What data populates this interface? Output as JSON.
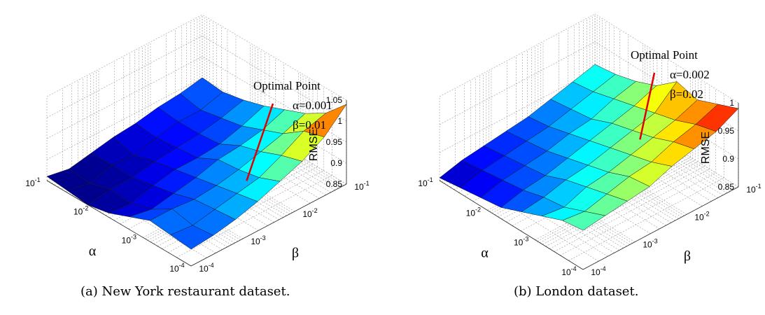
{
  "chart_data": [
    {
      "type": "surface",
      "caption": "(a) New York restaurant dataset.",
      "zlabel": "RMSE",
      "xlabel": "α",
      "ylabel": "β",
      "x_ticks": [
        "10-1",
        "10-2",
        "10-3",
        "10-4"
      ],
      "y_ticks": [
        "10-4",
        "10-3",
        "10-2",
        "10-1"
      ],
      "z_ticks": [
        "0.85",
        "0.9",
        "0.95",
        "1",
        "1.05"
      ],
      "zlim": [
        0.85,
        1.05
      ],
      "colormap": "jet",
      "clim": [
        0.85,
        1.05
      ],
      "alpha_range": [
        0.0001,
        0.1
      ],
      "beta_range": [
        0.0001,
        0.1
      ],
      "optimal_point": {
        "title": "Optimal Point",
        "alpha_label": "α=0.001",
        "beta_label": "β=0.01",
        "alpha": 0.001,
        "beta": 0.01,
        "rmse": 0.855
      },
      "grid": true,
      "z_values": [
        [
          0.89,
          0.895,
          0.905,
          0.92,
          0.94,
          0.96,
          0.99,
          1.04
        ],
        [
          0.895,
          0.89,
          0.9,
          0.91,
          0.92,
          0.945,
          0.975,
          0.99
        ],
        [
          0.9,
          0.9,
          0.895,
          0.9,
          0.91,
          0.925,
          0.94,
          0.96
        ],
        [
          0.88,
          0.87,
          0.88,
          0.89,
          0.905,
          0.91,
          0.92,
          0.94
        ],
        [
          0.86,
          0.855,
          0.87,
          0.88,
          0.88,
          0.885,
          0.9,
          0.92
        ],
        [
          0.85,
          0.86,
          0.86,
          0.87,
          0.875,
          0.88,
          0.89,
          0.905
        ],
        [
          0.855,
          0.845,
          0.86,
          0.855,
          0.87,
          0.88,
          0.88,
          0.895
        ],
        [
          0.86,
          0.85,
          0.86,
          0.87,
          0.875,
          0.885,
          0.89,
          0.9
        ]
      ]
    },
    {
      "type": "surface",
      "caption": "(b) London dataset.",
      "zlabel": "RMSE",
      "xlabel": "α",
      "ylabel": "β",
      "x_ticks": [
        "10-1",
        "10-2",
        "10-3",
        "10-4"
      ],
      "y_ticks": [
        "10-4",
        "10-3",
        "10-2",
        "10-1"
      ],
      "z_ticks": [
        "0.85",
        "0.9",
        "0.95",
        "1"
      ],
      "zlim": [
        0.85,
        1.0
      ],
      "colormap": "jet",
      "clim": [
        0.85,
        1.0
      ],
      "alpha_range": [
        0.0001,
        0.1
      ],
      "beta_range": [
        0.0001,
        0.1
      ],
      "optimal_point": {
        "title": "Optimal Point",
        "alpha_label": "α=0.002",
        "beta_label": "β=0.02",
        "alpha": 0.002,
        "beta": 0.02,
        "rmse": 0.9
      },
      "grid": true,
      "z_values": [
        [
          0.92,
          0.925,
          0.93,
          0.935,
          0.95,
          0.96,
          0.97,
          0.99
        ],
        [
          0.915,
          0.91,
          0.92,
          0.93,
          0.935,
          0.95,
          0.96,
          0.975
        ],
        [
          0.9,
          0.895,
          0.91,
          0.915,
          0.925,
          0.935,
          0.945,
          0.96
        ],
        [
          0.885,
          0.89,
          0.9,
          0.905,
          0.915,
          0.925,
          0.935,
          0.97
        ],
        [
          0.87,
          0.88,
          0.885,
          0.895,
          0.905,
          0.915,
          0.925,
          0.94
        ],
        [
          0.865,
          0.875,
          0.88,
          0.885,
          0.895,
          0.9,
          0.915,
          0.925
        ],
        [
          0.86,
          0.87,
          0.875,
          0.88,
          0.885,
          0.895,
          0.905,
          0.915
        ],
        [
          0.855,
          0.865,
          0.87,
          0.875,
          0.88,
          0.89,
          0.9,
          0.91
        ]
      ]
    }
  ]
}
